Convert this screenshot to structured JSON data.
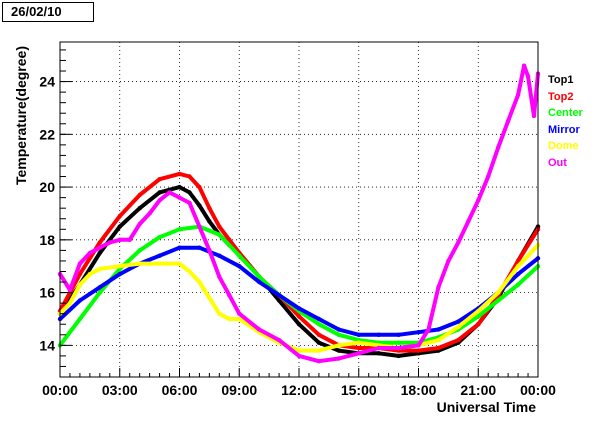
{
  "chart_data": {
    "type": "scatter",
    "title": "26/02/10",
    "xlabel": "Universal Time",
    "ylabel": "Temperature(degree)",
    "xlim": [
      0,
      24
    ],
    "ylim": [
      12.8,
      25.5
    ],
    "x_ticks": [
      0,
      3,
      6,
      9,
      12,
      15,
      18,
      21,
      24
    ],
    "x_tick_labels": [
      "00:00",
      "03:00",
      "06:00",
      "09:00",
      "12:00",
      "15:00",
      "18:00",
      "21:00",
      "00:00"
    ],
    "y_ticks": [
      14,
      16,
      18,
      20,
      22,
      24
    ],
    "y_tick_labels": [
      "14",
      "16",
      "18",
      "20",
      "22",
      "24"
    ],
    "grid": true,
    "legend_position": "right",
    "series": [
      {
        "name": "Top1",
        "color": "#000000",
        "x": [
          0,
          1,
          2,
          3,
          4,
          5,
          6,
          6.5,
          7,
          7.5,
          8,
          8.5,
          9,
          10,
          11,
          12,
          13,
          14,
          15,
          16,
          17,
          18,
          19,
          20,
          21,
          22,
          23,
          24
        ],
        "y": [
          15.2,
          16.3,
          17.5,
          18.5,
          19.2,
          19.8,
          20.0,
          19.8,
          19.3,
          18.7,
          18.2,
          17.8,
          17.5,
          16.6,
          15.7,
          14.8,
          14.1,
          13.8,
          13.7,
          13.7,
          13.6,
          13.7,
          13.8,
          14.1,
          14.8,
          15.8,
          17.2,
          18.5
        ]
      },
      {
        "name": "Top2",
        "color": "#ff0000",
        "x": [
          0,
          1,
          2,
          3,
          4,
          5,
          6,
          6.5,
          7,
          7.5,
          8,
          8.5,
          9,
          10,
          11,
          12,
          13,
          14,
          15,
          16,
          17,
          18,
          19,
          20,
          21,
          22,
          23,
          24
        ],
        "y": [
          15.3,
          16.7,
          17.9,
          18.9,
          19.7,
          20.3,
          20.5,
          20.4,
          20.0,
          19.2,
          18.5,
          18.0,
          17.5,
          16.6,
          15.9,
          15.1,
          14.4,
          14.0,
          13.9,
          13.9,
          13.8,
          13.8,
          13.9,
          14.2,
          14.8,
          15.9,
          17.2,
          18.4
        ]
      },
      {
        "name": "Center",
        "color": "#00ff00",
        "x": [
          0,
          1,
          2,
          3,
          4,
          5,
          6,
          7,
          8,
          9,
          10,
          11,
          12,
          13,
          14,
          15,
          16,
          17,
          18,
          19,
          20,
          21,
          22,
          23,
          24
        ],
        "y": [
          14.0,
          15.0,
          16.0,
          16.9,
          17.6,
          18.1,
          18.4,
          18.5,
          18.2,
          17.4,
          16.6,
          15.9,
          15.3,
          14.8,
          14.4,
          14.2,
          14.1,
          14.1,
          14.1,
          14.3,
          14.6,
          15.1,
          15.7,
          16.3,
          17.0
        ]
      },
      {
        "name": "Mirror",
        "color": "#0000ff",
        "x": [
          0,
          1,
          2,
          3,
          4,
          5,
          6,
          7,
          8,
          9,
          10,
          11,
          12,
          13,
          14,
          15,
          16,
          17,
          18,
          19,
          20,
          21,
          22,
          23,
          24
        ],
        "y": [
          15.0,
          15.7,
          16.2,
          16.7,
          17.1,
          17.4,
          17.7,
          17.7,
          17.4,
          17.0,
          16.4,
          15.9,
          15.4,
          15.0,
          14.6,
          14.4,
          14.4,
          14.4,
          14.5,
          14.6,
          14.9,
          15.4,
          16.0,
          16.7,
          17.3
        ]
      },
      {
        "name": "Dome",
        "color": "#ffff00",
        "x": [
          0,
          0.5,
          1,
          1.5,
          2,
          3,
          4,
          5,
          6,
          6.5,
          7,
          7.5,
          8,
          8.5,
          9,
          10,
          11,
          12,
          13,
          14,
          15,
          16,
          17,
          18,
          19,
          20,
          21,
          22,
          23,
          24
        ],
        "y": [
          15.2,
          15.6,
          16.3,
          16.7,
          16.9,
          17.0,
          17.1,
          17.1,
          17.1,
          16.8,
          16.4,
          15.8,
          15.2,
          15.0,
          15.0,
          14.5,
          14.1,
          13.8,
          13.8,
          14.0,
          14.1,
          14.0,
          13.9,
          14.0,
          14.2,
          14.7,
          15.3,
          16.0,
          17.0,
          17.8
        ]
      },
      {
        "name": "Out",
        "color": "#ff00ff",
        "x": [
          0,
          0.5,
          1,
          1.5,
          2,
          2.5,
          3,
          3.5,
          4,
          4.5,
          5,
          5.5,
          6,
          6.5,
          7,
          7.5,
          8,
          8.5,
          9,
          10,
          11,
          12,
          13,
          14,
          15,
          16,
          17,
          18,
          18.5,
          19,
          19.5,
          20,
          20.5,
          21,
          21.5,
          22,
          22.5,
          23,
          23.3,
          23.5,
          23.8,
          24
        ],
        "y": [
          16.7,
          16.1,
          17.1,
          17.5,
          17.7,
          17.9,
          18.0,
          18.0,
          18.6,
          19.0,
          19.5,
          19.8,
          19.6,
          19.4,
          18.5,
          17.6,
          16.6,
          15.9,
          15.2,
          14.6,
          14.2,
          13.6,
          13.4,
          13.5,
          13.7,
          13.9,
          13.9,
          14.0,
          14.6,
          16.2,
          17.2,
          17.9,
          18.7,
          19.5,
          20.4,
          21.5,
          22.5,
          23.5,
          24.6,
          24.2,
          22.7,
          24.3
        ]
      }
    ]
  }
}
